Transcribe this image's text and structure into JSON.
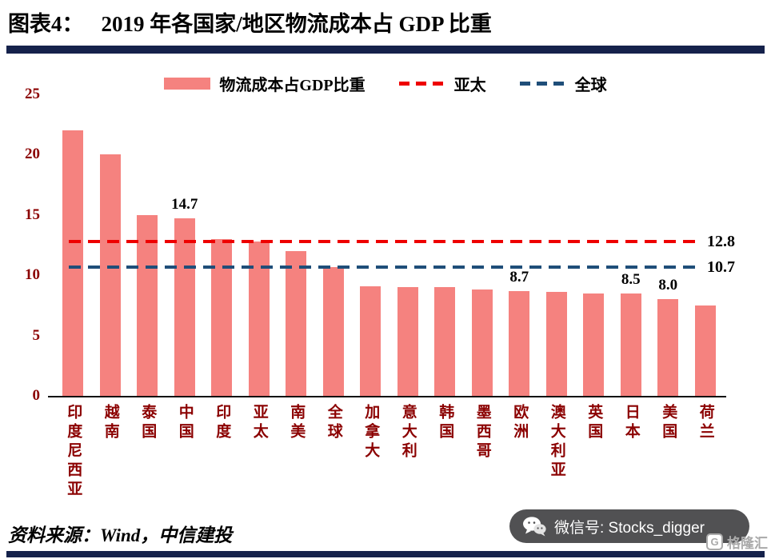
{
  "header": {
    "figure_label": "图表4：",
    "title": "2019 年各国家/地区物流成本占 GDP 比重"
  },
  "chart_data": {
    "type": "bar",
    "title": "2019 年各国家/地区物流成本占 GDP 比重",
    "bar_color": "#F5827F",
    "categories": [
      "印度尼西亚",
      "越南",
      "泰国",
      "中国",
      "印度",
      "亚太",
      "南美",
      "全球",
      "加拿大",
      "意大利",
      "韩国",
      "墨西哥",
      "欧洲",
      "澳大利亚",
      "英国",
      "日本",
      "美国",
      "荷兰"
    ],
    "values": [
      22.0,
      20.0,
      15.0,
      14.7,
      13.0,
      12.8,
      12.0,
      10.7,
      9.1,
      9.0,
      9.0,
      8.8,
      8.7,
      8.6,
      8.5,
      8.5,
      8.0,
      7.5
    ],
    "bar_value_labels": [
      null,
      null,
      null,
      "14.7",
      null,
      null,
      null,
      null,
      null,
      null,
      null,
      null,
      "8.7",
      null,
      null,
      "8.5",
      "8.0",
      null
    ],
    "ylim": [
      0,
      25
    ],
    "yticks": [
      0,
      5,
      10,
      15,
      20,
      25
    ],
    "grid": false,
    "legend_position": "top",
    "legend": [
      {
        "label": "物流成本占GDP比重",
        "type": "bar",
        "color": "#F5827F"
      },
      {
        "label": "亚太",
        "type": "dashed-line",
        "color": "#EE0000"
      },
      {
        "label": "全球",
        "type": "dashed-line",
        "color": "#1F4E79"
      }
    ],
    "reference_lines": [
      {
        "name": "亚太",
        "value": 12.8,
        "label": "12.8",
        "color": "#EE0000"
      },
      {
        "name": "全球",
        "value": 10.7,
        "label": "10.7",
        "color": "#1F4E79"
      }
    ],
    "xlabel": "",
    "ylabel": ""
  },
  "footer": {
    "source": "资料来源：Wind，中信建投"
  },
  "badges": {
    "wechat_label": "微信号: Stocks_digger",
    "logo_icon": "G",
    "logo_text": "格隆汇"
  },
  "colors": {
    "accent_rule": "#15224B",
    "axis_text": "#8B0000",
    "bar": "#F5827F",
    "apac_line": "#EE0000",
    "global_line": "#1F4E79",
    "wechat_badge_bg": "#515153"
  }
}
